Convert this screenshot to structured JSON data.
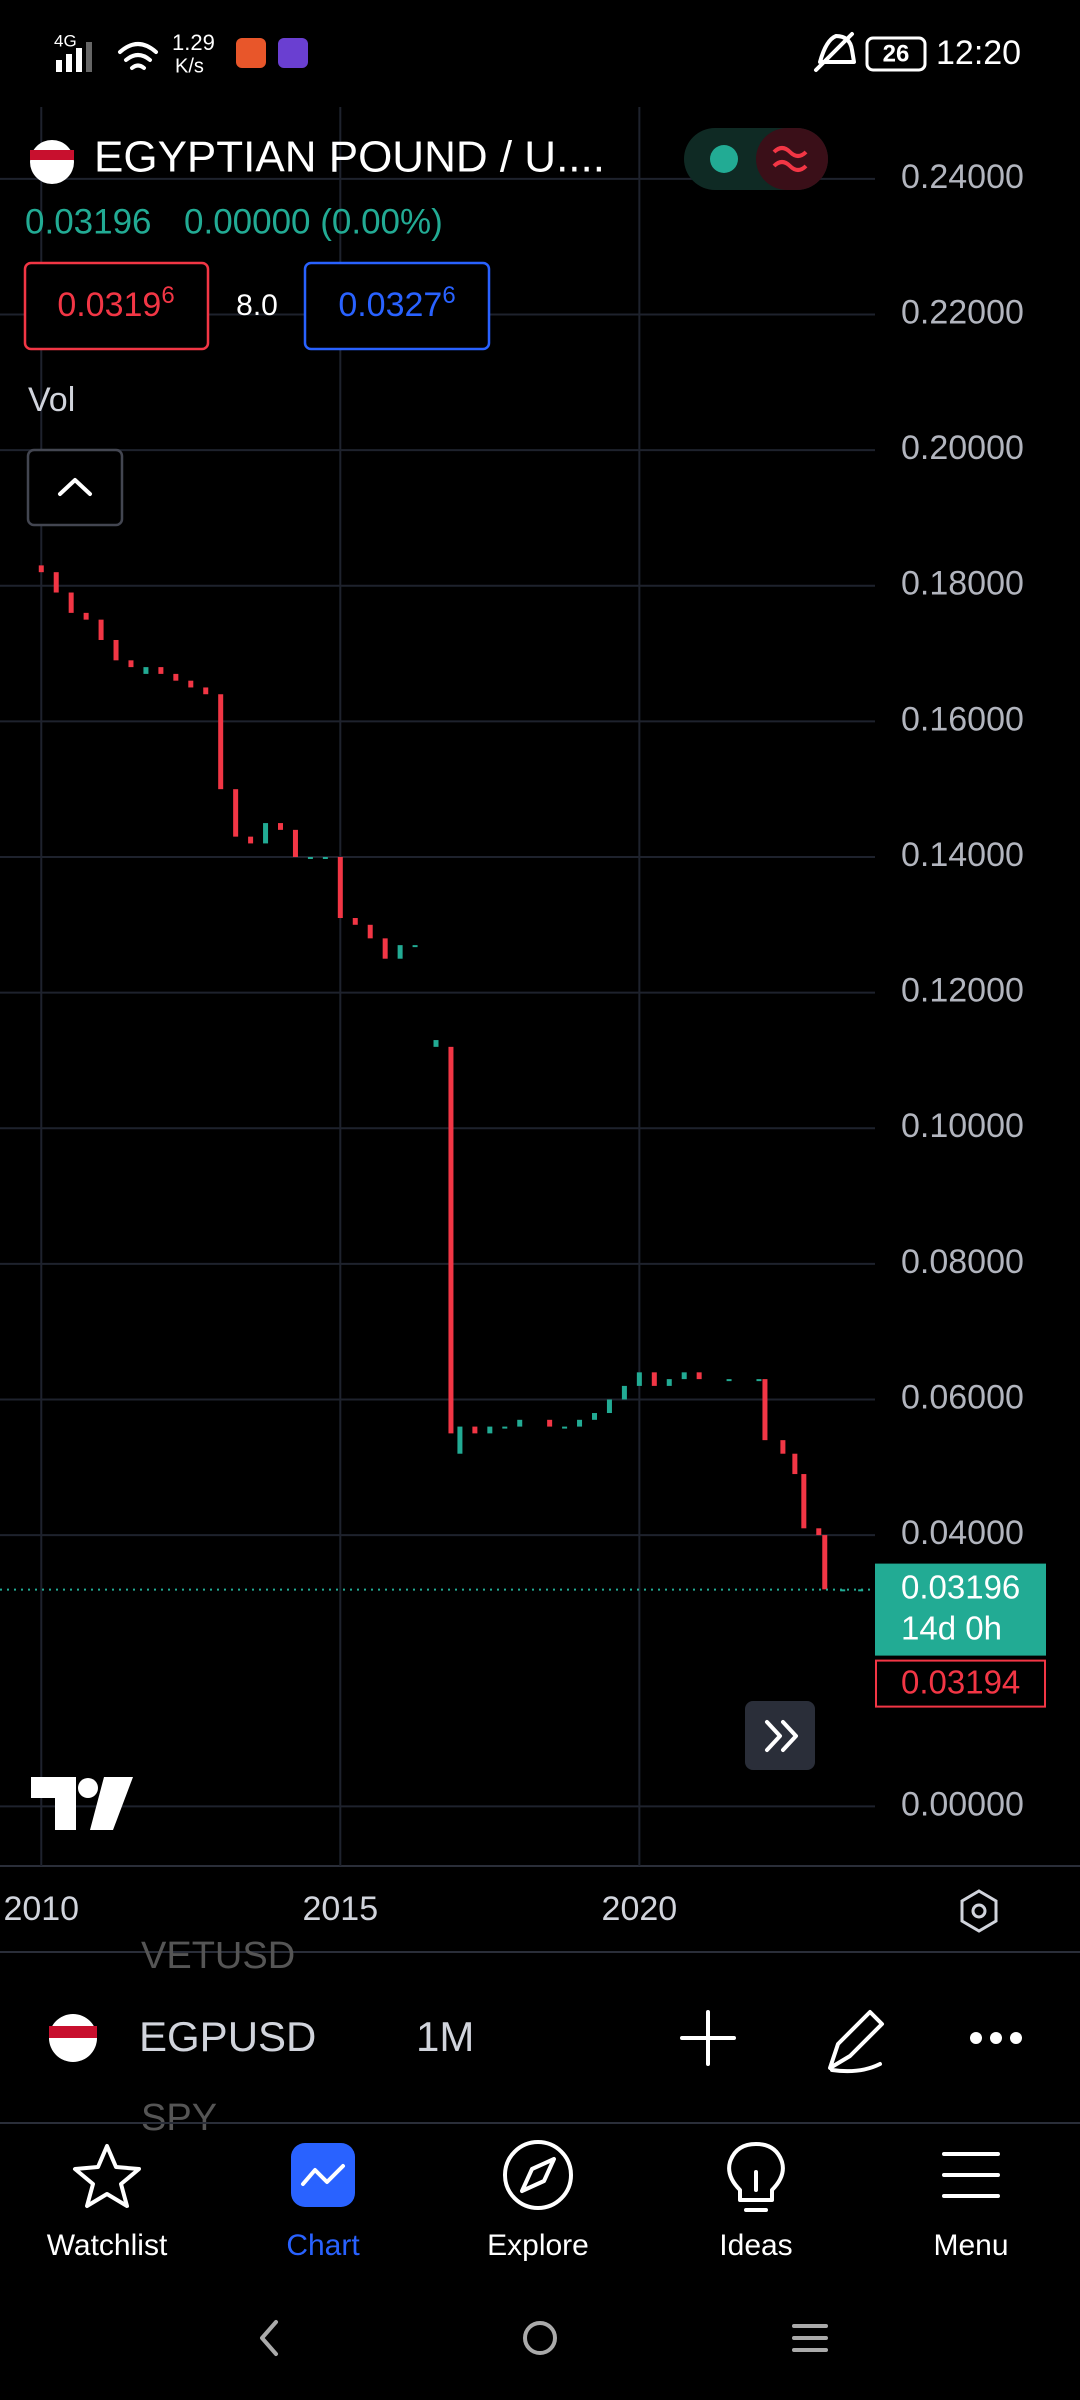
{
  "status_bar": {
    "network": "4G",
    "speed": "1.29",
    "speed_unit": "K/s",
    "battery": "26",
    "time": "12:20"
  },
  "header": {
    "title": "EGYPTIAN POUND / U....",
    "price": "0.03196",
    "change": "0.00000 (0.00%)",
    "sell": {
      "main": "0.0319",
      "pip": "6"
    },
    "spread": "8.0",
    "buy": {
      "main": "0.0327",
      "pip": "6"
    },
    "indicator": "Vol"
  },
  "chart_data": {
    "type": "candlestick",
    "x": [
      2010.0,
      2010.25,
      2010.5,
      2010.75,
      2011.0,
      2011.25,
      2011.5,
      2011.75,
      2012.0,
      2012.25,
      2012.5,
      2012.75,
      2013.0,
      2013.25,
      2013.5,
      2013.75,
      2014.0,
      2014.25,
      2014.5,
      2014.75,
      2015.0,
      2015.25,
      2015.5,
      2015.75,
      2016.0,
      2016.25,
      2016.6,
      2016.85,
      2017.0,
      2017.25,
      2017.5,
      2017.75,
      2018.0,
      2018.5,
      2018.75,
      2019.0,
      2019.25,
      2019.5,
      2019.75,
      2020.0,
      2020.25,
      2020.5,
      2020.75,
      2021.0,
      2021.5,
      2022.0,
      2022.1,
      2022.4,
      2022.6,
      2022.75,
      2023.0,
      2023.1,
      2023.4,
      2023.7
    ],
    "open": [
      0.183,
      0.182,
      0.179,
      0.176,
      0.175,
      0.172,
      0.169,
      0.167,
      0.168,
      0.167,
      0.166,
      0.165,
      0.164,
      0.15,
      0.143,
      0.142,
      0.145,
      0.144,
      0.14,
      0.14,
      0.14,
      0.131,
      0.13,
      0.128,
      0.125,
      0.127,
      0.112,
      0.112,
      0.052,
      0.056,
      0.055,
      0.056,
      0.056,
      0.057,
      0.056,
      0.056,
      0.057,
      0.058,
      0.06,
      0.062,
      0.064,
      0.062,
      0.063,
      0.064,
      0.063,
      0.063,
      0.063,
      0.054,
      0.052,
      0.049,
      0.041,
      0.04,
      0.032,
      0.032
    ],
    "close": [
      0.182,
      0.179,
      0.176,
      0.175,
      0.172,
      0.169,
      0.168,
      0.168,
      0.167,
      0.166,
      0.165,
      0.164,
      0.15,
      0.143,
      0.142,
      0.145,
      0.144,
      0.14,
      0.14,
      0.14,
      0.131,
      0.13,
      0.128,
      0.125,
      0.127,
      0.127,
      0.113,
      0.055,
      0.056,
      0.055,
      0.056,
      0.056,
      0.057,
      0.056,
      0.056,
      0.057,
      0.058,
      0.06,
      0.062,
      0.064,
      0.062,
      0.063,
      0.064,
      0.063,
      0.063,
      0.063,
      0.054,
      0.052,
      0.049,
      0.041,
      0.04,
      0.032,
      0.032,
      0.032
    ],
    "xlim": [
      2009.31,
      2023.94
    ],
    "ylim": [
      -0.0088,
      0.2506
    ],
    "xticks": [
      2010,
      2015,
      2020
    ],
    "yticks": [
      {
        "value": 0.24,
        "label": "0.24000"
      },
      {
        "value": 0.22,
        "label": "0.22000"
      },
      {
        "value": 0.2,
        "label": "0.20000"
      },
      {
        "value": 0.18,
        "label": "0.18000"
      },
      {
        "value": 0.16,
        "label": "0.16000"
      },
      {
        "value": 0.14,
        "label": "0.14000"
      },
      {
        "value": 0.12,
        "label": "0.12000"
      },
      {
        "value": 0.1,
        "label": "0.10000"
      },
      {
        "value": 0.08,
        "label": "0.08000"
      },
      {
        "value": 0.06,
        "label": "0.06000"
      },
      {
        "value": 0.04,
        "label": "0.04000"
      },
      {
        "value": 0.0,
        "label": "0.00000"
      }
    ],
    "grid": true,
    "up_color": "#22ab94",
    "down_color": "#f23645",
    "last_price": {
      "value": 0.03196,
      "label": "0.03196"
    },
    "countdown": "14d 0h",
    "bid_label": "0.03194"
  },
  "toolbar": {
    "symbol": "EGPUSD",
    "interval": "1M",
    "list_above": "VETUSD",
    "list_below": "SPY"
  },
  "nav": [
    {
      "label": "Watchlist"
    },
    {
      "label": "Chart"
    },
    {
      "label": "Explore"
    },
    {
      "label": "Ideas"
    },
    {
      "label": "Menu"
    }
  ]
}
